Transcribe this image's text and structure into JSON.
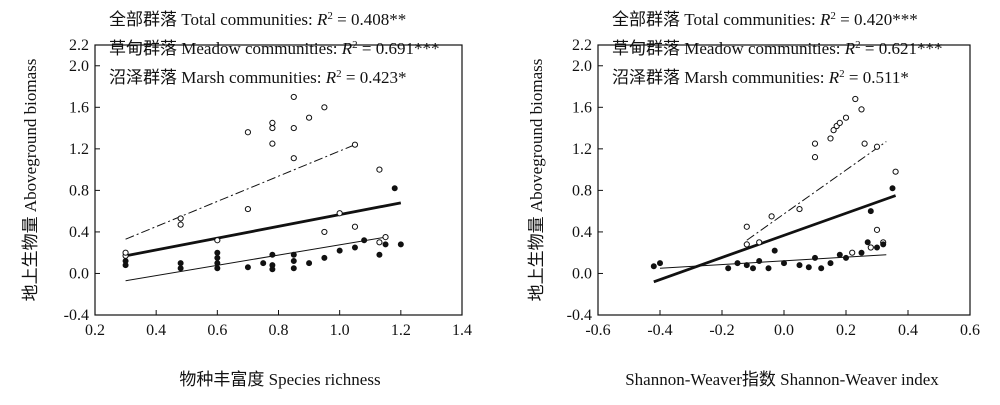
{
  "chart_data": [
    {
      "type": "scatter",
      "xlabel": "物种丰富度 Species richness",
      "ylabel": "地上生物量 Aboveground biomass",
      "xlim": [
        0.2,
        1.4
      ],
      "ylim": [
        -0.4,
        2.2
      ],
      "xticks": [
        "0.2",
        "0.4",
        "0.6",
        "0.8",
        "1.0",
        "1.2",
        "1.4"
      ],
      "yticks": [
        "-0.4",
        "0.0",
        "0.4",
        "0.8",
        "1.2",
        "1.6",
        "2.0",
        "2.2"
      ],
      "annotations": [
        {
          "cn": "全部群落",
          "en": "Total communities",
          "stat": "= 0.408**"
        },
        {
          "cn": "草甸群落",
          "en": "Meadow communities",
          "stat": "= 0.691***"
        },
        {
          "cn": "沼泽群落",
          "en": "Marsh communities",
          "stat": "= 0.423*"
        }
      ],
      "meadow_points": [
        [
          0.3,
          0.17
        ],
        [
          0.3,
          0.2
        ],
        [
          0.48,
          0.47
        ],
        [
          0.48,
          0.53
        ],
        [
          0.6,
          0.32
        ],
        [
          0.7,
          1.36
        ],
        [
          0.7,
          0.62
        ],
        [
          0.78,
          1.4
        ],
        [
          0.78,
          1.45
        ],
        [
          0.78,
          1.25
        ],
        [
          0.85,
          1.7
        ],
        [
          0.85,
          1.4
        ],
        [
          0.85,
          1.11
        ],
        [
          0.9,
          1.5
        ],
        [
          0.95,
          1.6
        ],
        [
          0.95,
          0.4
        ],
        [
          1.0,
          0.58
        ],
        [
          1.05,
          1.24
        ],
        [
          1.05,
          0.45
        ],
        [
          1.13,
          1.0
        ],
        [
          1.13,
          0.3
        ],
        [
          1.15,
          0.35
        ]
      ],
      "marsh_points": [
        [
          0.3,
          0.08
        ],
        [
          0.3,
          0.12
        ],
        [
          0.48,
          0.05
        ],
        [
          0.48,
          0.1
        ],
        [
          0.6,
          0.05
        ],
        [
          0.6,
          0.1
        ],
        [
          0.6,
          0.15
        ],
        [
          0.6,
          0.2
        ],
        [
          0.7,
          0.06
        ],
        [
          0.75,
          0.1
        ],
        [
          0.78,
          0.04
        ],
        [
          0.78,
          0.08
        ],
        [
          0.78,
          0.18
        ],
        [
          0.85,
          0.05
        ],
        [
          0.85,
          0.12
        ],
        [
          0.85,
          0.18
        ],
        [
          0.9,
          0.1
        ],
        [
          0.95,
          0.15
        ],
        [
          1.0,
          0.22
        ],
        [
          1.05,
          0.25
        ],
        [
          1.08,
          0.32
        ],
        [
          1.13,
          0.18
        ],
        [
          1.15,
          0.28
        ],
        [
          1.18,
          0.82
        ],
        [
          1.2,
          0.28
        ]
      ],
      "fits": {
        "total": [
          [
            0.3,
            0.17
          ],
          [
            1.2,
            0.68
          ]
        ],
        "meadow": [
          [
            0.3,
            0.33
          ],
          [
            1.05,
            1.24
          ]
        ],
        "marsh": [
          [
            0.3,
            -0.07
          ],
          [
            1.15,
            0.35
          ]
        ]
      }
    },
    {
      "type": "scatter",
      "xlabel": "Shannon-Weaver指数 Shannon-Weaver index",
      "ylabel": "地上生物量 Aboveground biomass",
      "xlim": [
        -0.6,
        0.6
      ],
      "ylim": [
        -0.4,
        2.2
      ],
      "xticks": [
        "-0.6",
        "-0.4",
        "-0.2",
        "0.0",
        "0.2",
        "0.4",
        "0.6"
      ],
      "yticks": [
        "-0.4",
        "0.0",
        "0.4",
        "0.8",
        "1.2",
        "1.6",
        "2.0",
        "2.2"
      ],
      "annotations": [
        {
          "cn": "全部群落",
          "en": "Total communities",
          "stat": "= 0.420***"
        },
        {
          "cn": "草甸群落",
          "en": "Meadow communities",
          "stat": "= 0.621***"
        },
        {
          "cn": "沼泽群落",
          "en": "Marsh communities",
          "stat": "= 0.511*"
        }
      ],
      "meadow_points": [
        [
          -0.12,
          0.45
        ],
        [
          -0.12,
          0.28
        ],
        [
          -0.08,
          0.3
        ],
        [
          -0.04,
          0.55
        ],
        [
          0.05,
          0.62
        ],
        [
          0.1,
          1.12
        ],
        [
          0.1,
          1.25
        ],
        [
          0.15,
          1.3
        ],
        [
          0.16,
          1.38
        ],
        [
          0.17,
          1.42
        ],
        [
          0.18,
          1.45
        ],
        [
          0.2,
          1.5
        ],
        [
          0.23,
          1.68
        ],
        [
          0.25,
          1.58
        ],
        [
          0.26,
          1.25
        ],
        [
          0.28,
          0.25
        ],
        [
          0.3,
          0.42
        ],
        [
          0.3,
          1.22
        ],
        [
          0.32,
          0.3
        ],
        [
          0.36,
          0.98
        ],
        [
          0.22,
          0.2
        ]
      ],
      "marsh_points": [
        [
          -0.42,
          0.07
        ],
        [
          -0.4,
          0.1
        ],
        [
          -0.18,
          0.05
        ],
        [
          -0.15,
          0.1
        ],
        [
          -0.12,
          0.08
        ],
        [
          -0.1,
          0.05
        ],
        [
          -0.08,
          0.12
        ],
        [
          -0.05,
          0.05
        ],
        [
          -0.03,
          0.22
        ],
        [
          0.0,
          0.1
        ],
        [
          0.05,
          0.08
        ],
        [
          0.08,
          0.06
        ],
        [
          0.1,
          0.15
        ],
        [
          0.12,
          0.05
        ],
        [
          0.15,
          0.1
        ],
        [
          0.18,
          0.18
        ],
        [
          0.2,
          0.15
        ],
        [
          0.25,
          0.2
        ],
        [
          0.27,
          0.3
        ],
        [
          0.28,
          0.6
        ],
        [
          0.3,
          0.25
        ],
        [
          0.32,
          0.28
        ],
        [
          0.35,
          0.82
        ]
      ],
      "fits": {
        "total": [
          [
            -0.42,
            -0.08
          ],
          [
            0.36,
            0.75
          ]
        ],
        "meadow": [
          [
            -0.12,
            0.32
          ],
          [
            0.33,
            1.27
          ]
        ],
        "marsh": [
          [
            -0.4,
            0.05
          ],
          [
            0.33,
            0.18
          ]
        ]
      }
    }
  ]
}
